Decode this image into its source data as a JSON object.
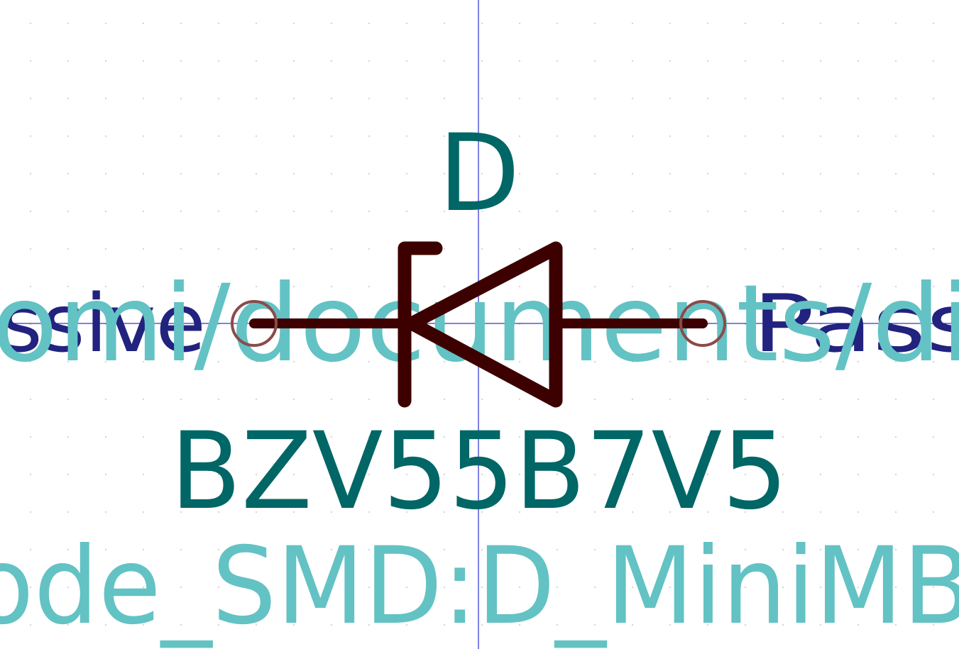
{
  "symbol": {
    "reference": "D",
    "value": "BZV55B7V5",
    "footprint": "Diode_SMD:D_MiniMELF",
    "datasheet": "~/mnt/documents/pdf/",
    "pin_left_type": "passive",
    "pin_right_type": "Passive",
    "visible": {
      "footprint": "ode_SMD:D_MiniMB",
      "datasheet": "omi/documents/di",
      "pin_left_type": "ssive",
      "pin_right_type": "Pass"
    }
  },
  "colors": {
    "background": "#ffffff",
    "body": "#3d0000",
    "reference": "#006666",
    "value": "#006666",
    "footprint": "#63c2c4",
    "pin_type": "#22227f",
    "pin_marker": "#8b4a4a",
    "axis": "#0000c8"
  }
}
